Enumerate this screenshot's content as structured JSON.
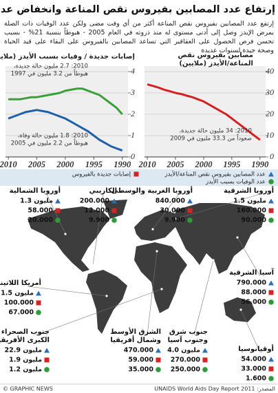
{
  "title": "إرتفاع عدد المصابين بفيروس نقص المناعة وانخفاض عدد الوفيات",
  "intro": "إرتفع عدد المصابين بفيروس نقص المناعة أكثر من أي وقت مضى ولكن عدد الوفيات ذات الصلة بمرض الإيدز وصل إلى أدنى مستوى له منذ ذروته في العام 2005 - هبوطاً بنسبة 21% - بسبب تحسن فرص الحصول على العقاقير التي تساعد المصابين بالفيروس على البقاء على قيد الحياة وصحة جيدة لسنوات عديدة",
  "chart_data": [
    {
      "type": "line",
      "title": [
        "إصابات جديدة / وفيات بسبب الأيدز (ملايين)"
      ],
      "x": [
        1990,
        1991,
        1992,
        1993,
        1994,
        1995,
        1996,
        1997,
        1998,
        1999,
        2000,
        2001,
        2002,
        2003,
        2004,
        2005,
        2006,
        2007,
        2008,
        2009,
        2010
      ],
      "series": [
        {
          "color": "#3a9e3a",
          "values": [
            2.0,
            2.3,
            2.5,
            2.7,
            2.9,
            3.0,
            3.1,
            3.2,
            3.2,
            3.15,
            3.1,
            3.0,
            2.95,
            2.9,
            2.85,
            2.8,
            2.8,
            2.75,
            2.7,
            2.7,
            2.7
          ]
        },
        {
          "color": "#1f5fa8",
          "values": [
            0.3,
            0.4,
            0.5,
            0.65,
            0.8,
            1.0,
            1.2,
            1.35,
            1.5,
            1.65,
            1.8,
            1.9,
            2.0,
            2.1,
            2.15,
            2.2,
            2.15,
            2.1,
            2.0,
            1.9,
            1.8
          ]
        }
      ],
      "annotations": [
        [
          "2010: 2.7 مليون حالة جديدة،",
          "هبوطاً من 3.2 مليون في 1997"
        ],
        [
          "2010: 1.8 مليون حالة وفاة،",
          "هبوطاً من 2.2 مليون في 2005"
        ]
      ],
      "xlim": [
        2010.5,
        1989
      ],
      "xticks": [
        2010,
        2005,
        2000,
        1995,
        1990
      ],
      "ylim": [
        0,
        4
      ],
      "yticks": [
        0,
        1,
        2,
        3,
        4
      ],
      "grid": true
    },
    {
      "type": "line",
      "title": [
        "مصابين بفيروس نقص",
        "المناعة/الأيدز (ملايين)"
      ],
      "x": [
        1990,
        1991,
        1992,
        1993,
        1994,
        1995,
        1996,
        1997,
        1998,
        1999,
        2000,
        2001,
        2002,
        2003,
        2004,
        2005,
        2006,
        2007,
        2008,
        2009,
        2010
      ],
      "series": [
        {
          "color": "#d42020",
          "values": [
            8,
            10,
            12,
            14,
            16,
            18,
            20,
            21.5,
            23,
            24.5,
            26,
            27,
            28,
            28.7,
            29.5,
            30,
            30.8,
            31.5,
            32.5,
            33.3,
            34
          ]
        }
      ],
      "annotations": [
        [
          "2010: 34 مليون حالة جديدة،",
          "صعوداً من 33.3 مليون في 2009"
        ]
      ],
      "xlim": [
        2010.5,
        1989
      ],
      "xticks": [
        2010,
        2005,
        2000,
        1995,
        1990
      ],
      "ylim": [
        0,
        40
      ],
      "yticks": [
        0,
        10,
        20,
        30,
        40
      ],
      "grid": true
    }
  ],
  "legend": [
    {
      "symbol": "triangle",
      "color": "#2a6fb8",
      "label": "عدد المصابين بفيروس نقص المناعة/الأيدز"
    },
    {
      "symbol": "square",
      "color": "#d42424",
      "label": "إصابات جديدة بالفيروس"
    },
    {
      "symbol": "circle",
      "color": "#2e9a3a",
      "label": "عدد الوفيات بسبب الأيدز"
    }
  ],
  "regions": [
    {
      "name": [
        "أوروبا الشرقية"
      ],
      "values": [
        "1.5 مليون",
        "160.000",
        "90.000"
      ]
    },
    {
      "name": [
        "أوروبا الغربية والوسطى"
      ],
      "values": [
        "840.000",
        "30.000",
        "9.900"
      ]
    },
    {
      "name": [
        "الكاريبي"
      ],
      "values": [
        "200.000",
        "12.000",
        "9.900"
      ]
    },
    {
      "name": [
        "أوروبا الشمالية"
      ],
      "values": [
        "1.3 مليون",
        "58.000",
        "20.000"
      ]
    },
    {
      "name": [
        "آسيا الشرقية"
      ],
      "values": [
        "790.000",
        "88.000",
        "56.000"
      ]
    },
    {
      "name": [
        "أمريكا اللاتينية"
      ],
      "values": [
        "1.5 مليون",
        "100.000",
        "67.000"
      ]
    },
    {
      "name": [
        "جنوب الصحراء",
        "الكبرى الأفريقية"
      ],
      "values": [
        "22.9 مليون",
        "1.9 مليون",
        "1.2 مليون"
      ]
    },
    {
      "name": [
        "الشرق الأوسط",
        "وشمال أفريقيا"
      ],
      "values": [
        "470.000",
        "59.000",
        "35.000"
      ]
    },
    {
      "name": [
        "جنوب شرق",
        "وجنوب آسيا"
      ],
      "values": [
        "4.0 مليون",
        "270.000",
        "250.000"
      ]
    },
    {
      "name": [
        "أوقيانوسيا"
      ],
      "values": [
        "54.000",
        "33.000",
        "1.600"
      ]
    }
  ],
  "footer": {
    "credit": "© GRAPHIC NEWS",
    "source": "المصدر: UNAIDS World Aids Day Report 2011"
  }
}
